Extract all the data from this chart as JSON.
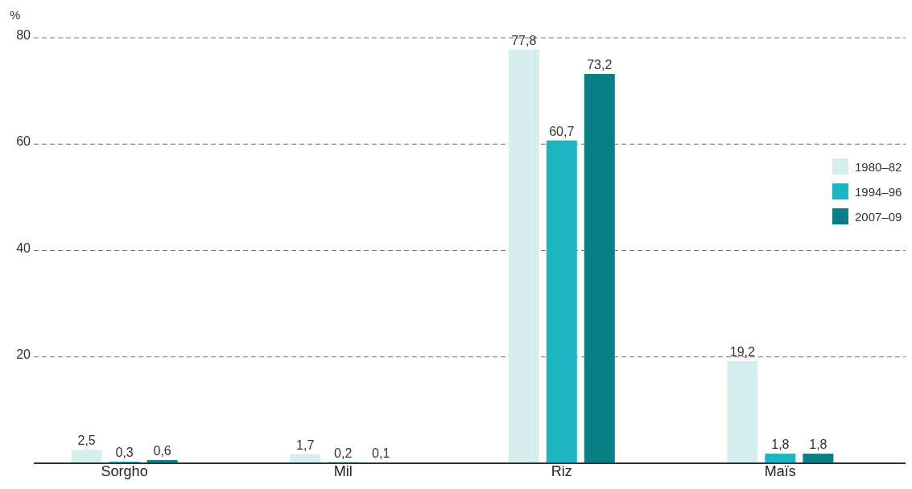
{
  "chart_data": {
    "type": "bar",
    "ylabel": "%",
    "categories": [
      "Sorgho",
      "Mil",
      "Riz",
      "Maïs"
    ],
    "series": [
      {
        "name": "1980–82",
        "color": "#d5eded",
        "values": [
          2.5,
          1.7,
          77.8,
          19.2
        ],
        "value_labels": [
          "2,5",
          "1,7",
          "77,8",
          "19,2"
        ]
      },
      {
        "name": "1994–96",
        "color": "#1cb5c1",
        "values": [
          0.3,
          0.2,
          60.7,
          1.8
        ],
        "value_labels": [
          "0,3",
          "0,2",
          "60,7",
          "1,8"
        ]
      },
      {
        "name": "2007–09",
        "color": "#077f84",
        "values": [
          0.6,
          0.1,
          73.2,
          1.8
        ],
        "value_labels": [
          "0,6",
          "0,1",
          "73,2",
          "1,8"
        ]
      }
    ],
    "ylim": [
      0,
      80
    ],
    "yticks": [
      20,
      40,
      60,
      80
    ],
    "grid": "y",
    "legend": "right"
  }
}
